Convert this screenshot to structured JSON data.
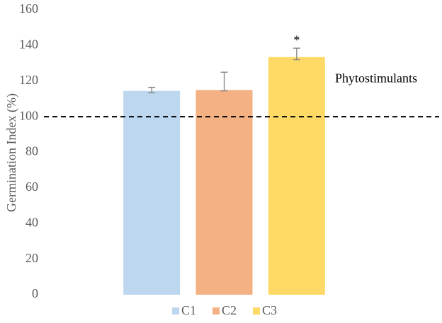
{
  "chart_data": {
    "type": "bar",
    "y_label": "Germination Index (%)",
    "categories": [
      "C1",
      "C2",
      "C3"
    ],
    "values": [
      114.5,
      115,
      133.5
    ],
    "error_high": [
      2,
      10,
      5
    ],
    "error_low": [
      1,
      0.5,
      1.5
    ],
    "colors": [
      "#bdd7ee",
      "#f4b183",
      "#ffd966"
    ],
    "ylim": [
      0,
      160
    ],
    "yticks": [
      0,
      20,
      40,
      60,
      80,
      100,
      120,
      140,
      160
    ],
    "grid": false,
    "reference_line": {
      "value": 100,
      "label": "Phytostimulants"
    },
    "annotations": [
      {
        "category": "C3",
        "text": "*"
      }
    ],
    "legend": "bottom"
  }
}
